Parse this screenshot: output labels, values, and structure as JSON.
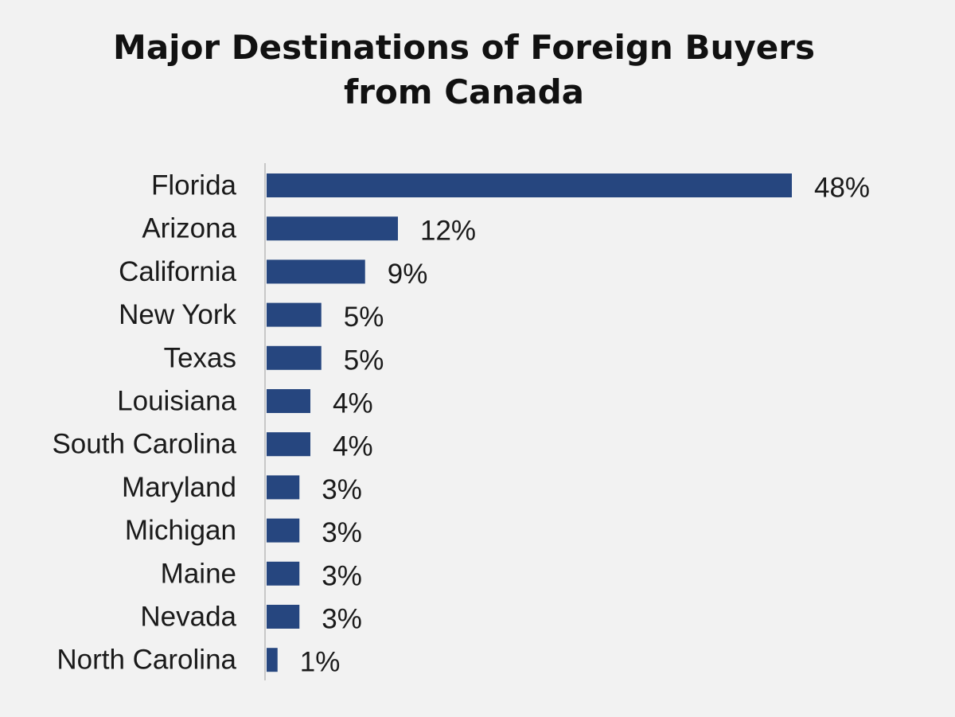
{
  "chart_data": {
    "type": "bar",
    "orientation": "horizontal",
    "title_lines": [
      "Major Destinations of Foreign Buyers",
      "from Canada"
    ],
    "categories": [
      "Florida",
      "Arizona",
      "California",
      "New York",
      "Texas",
      "Louisiana",
      "South Carolina",
      "Maryland",
      "Michigan",
      "Maine",
      "Nevada",
      "North Carolina"
    ],
    "values": [
      48,
      12,
      9,
      5,
      5,
      4,
      4,
      3,
      3,
      3,
      3,
      1
    ],
    "value_labels": [
      "48%",
      "12%",
      "9%",
      "5%",
      "5%",
      "4%",
      "4%",
      "3%",
      "3%",
      "3%",
      "3%",
      "1%"
    ],
    "unit": "%",
    "grid": false,
    "legend": "none",
    "bar_color": "#26467f",
    "axis_color": "#c8c8c8"
  }
}
